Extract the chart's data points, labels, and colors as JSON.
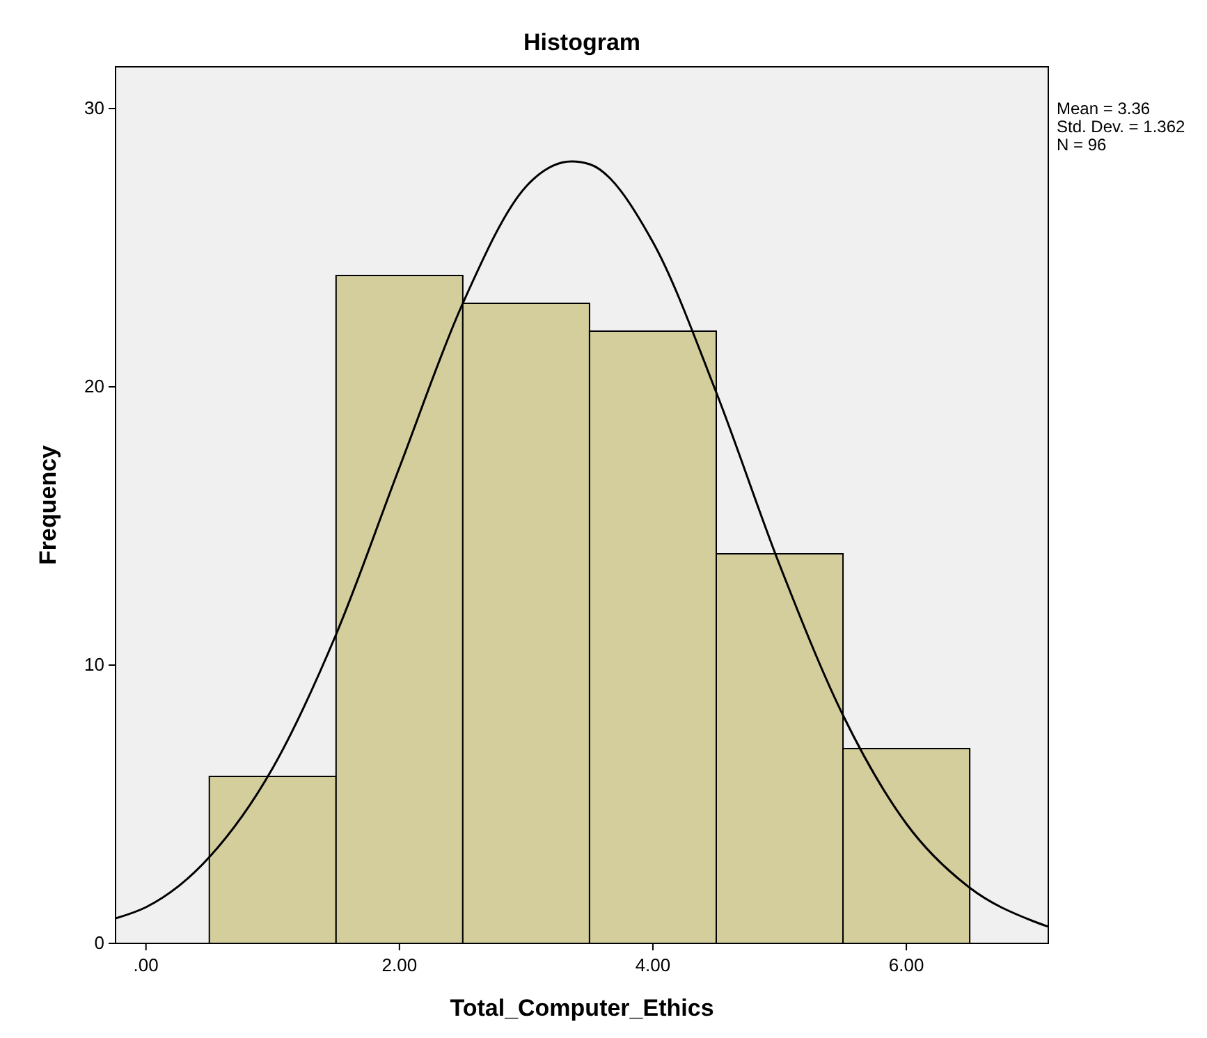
{
  "chart_data": {
    "type": "histogram",
    "title": "Histogram",
    "xlabel": "Total_Computer_Ethics",
    "ylabel": "Frequency",
    "bins": [
      0.5,
      1.5,
      2.5,
      3.5,
      4.5,
      5.5,
      6.5
    ],
    "series": [
      {
        "color": "#d3ce9c",
        "values": [
          6,
          24,
          23,
          22,
          14,
          7
        ]
      },
      {
        "type": "line",
        "color": "#000000",
        "x": [
          -0.24,
          0,
          0.5,
          1,
          1.5,
          2,
          2.5,
          3,
          3.36,
          3.5,
          4,
          4.5,
          5,
          5.5,
          6,
          6.5,
          7,
          7.12
        ],
        "values": [
          0.9,
          1.3,
          3.1,
          6.3,
          11.1,
          17.1,
          23.0,
          27.2,
          28.1,
          28.0,
          25.2,
          19.8,
          13.6,
          8.2,
          4.3,
          2.0,
          0.8,
          0.6
        ]
      }
    ],
    "xlim": [
      -0.24,
      7.12
    ],
    "ylim": [
      0,
      31.5
    ],
    "xticks": [
      {
        "value": 0,
        "label": ".00"
      },
      {
        "value": 2,
        "label": "2.00"
      },
      {
        "value": 4,
        "label": "4.00"
      },
      {
        "value": 6,
        "label": "6.00"
      }
    ],
    "yticks": [
      0,
      10,
      20,
      30
    ],
    "annotations": [
      "Mean = 3.36",
      "Std. Dev. = 1.362",
      "N = 96"
    ]
  }
}
